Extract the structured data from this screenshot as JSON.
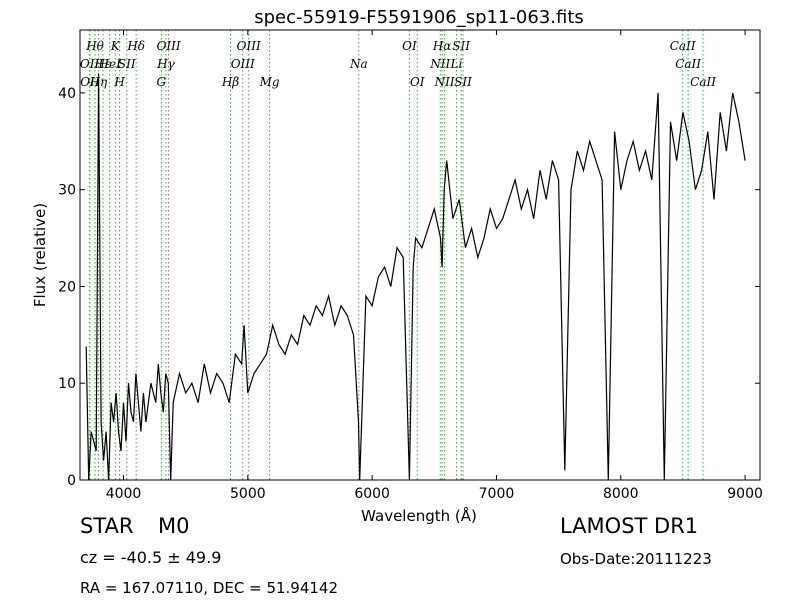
{
  "chart_data": {
    "type": "line",
    "title": "spec-55919-F5591906_sp11-063.fits",
    "xlabel": "Wavelength (Å)",
    "ylabel": "Flux (relative)",
    "xlim": [
      3650,
      9120
    ],
    "ylim": [
      0,
      46.5
    ],
    "x_ticks": [
      4000,
      5000,
      6000,
      7000,
      8000,
      9000
    ],
    "y_ticks": [
      0,
      10,
      20,
      30,
      40
    ],
    "grid": false,
    "line_color": "#000000",
    "marker_color": "#3aa53a",
    "series": [
      {
        "x": [
          3700,
          3720,
          3740,
          3760,
          3780,
          3800,
          3820,
          3840,
          3860,
          3880,
          3900,
          3920,
          3940,
          3960,
          3980,
          4000,
          4020,
          4040,
          4060,
          4080,
          4100,
          4120,
          4140,
          4160,
          4180,
          4200,
          4220,
          4240,
          4260,
          4280,
          4300,
          4320,
          4340,
          4360,
          4380,
          4400,
          4450,
          4500,
          4550,
          4600,
          4650,
          4700,
          4750,
          4800,
          4850,
          4900,
          4950,
          4970,
          5000,
          5050,
          5100,
          5150,
          5200,
          5250,
          5300,
          5350,
          5400,
          5450,
          5500,
          5550,
          5600,
          5650,
          5700,
          5750,
          5800,
          5850,
          5890,
          5900,
          5950,
          6000,
          6050,
          6100,
          6150,
          6200,
          6250,
          6300,
          6330,
          6350,
          6400,
          6450,
          6500,
          6550,
          6563,
          6580,
          6600,
          6650,
          6700,
          6750,
          6800,
          6850,
          6900,
          6950,
          7000,
          7050,
          7100,
          7150,
          7200,
          7250,
          7300,
          7350,
          7400,
          7450,
          7500,
          7550,
          7600,
          7650,
          7700,
          7750,
          7800,
          7850,
          7900,
          7950,
          8000,
          8050,
          8100,
          8150,
          8200,
          8250,
          8300,
          8350,
          8400,
          8450,
          8500,
          8550,
          8600,
          8650,
          8700,
          8750,
          8800,
          8850,
          8900,
          8950,
          9000
        ],
        "y": [
          13.8,
          0,
          5,
          4,
          3,
          42,
          6,
          2,
          5,
          0,
          8,
          6,
          9,
          5,
          3,
          8,
          4,
          10,
          7,
          6,
          11,
          8,
          5,
          9,
          6,
          8,
          10,
          9,
          8,
          12,
          9,
          7,
          11,
          10,
          0,
          8,
          11,
          9,
          10,
          8,
          12,
          9,
          11,
          10,
          8,
          13,
          12,
          16,
          9,
          11,
          12,
          13,
          16,
          14,
          13,
          15,
          14,
          17,
          16,
          18,
          17,
          19,
          16,
          18,
          17,
          15,
          6,
          0,
          19,
          18,
          21,
          22,
          20,
          24,
          23,
          0,
          22,
          25,
          24,
          26,
          28,
          25,
          22,
          30,
          33,
          27,
          29,
          24,
          26,
          23,
          25,
          28,
          26,
          27,
          29,
          31,
          28,
          30,
          27,
          32,
          29,
          33,
          31,
          1,
          30,
          34,
          32,
          35,
          33,
          31,
          0,
          36,
          30,
          33,
          35,
          32,
          34,
          31,
          40,
          0,
          37,
          33,
          38,
          35,
          30,
          32,
          36,
          29,
          38,
          34,
          40,
          37,
          33
        ]
      }
    ],
    "markers": [
      {
        "x": 3727,
        "label": "OII",
        "row": 2
      },
      {
        "x": 3730,
        "label": "OII",
        "row": 3
      },
      {
        "x": 3771,
        "label": "Hθ",
        "row": 1
      },
      {
        "x": 3798,
        "label": "Hη",
        "row": 3
      },
      {
        "x": 3835,
        "label": "Hε",
        "row": 2
      },
      {
        "x": 3889,
        "label": "HeI",
        "row": 2
      },
      {
        "x": 3934,
        "label": "K",
        "row": 1
      },
      {
        "x": 3969,
        "label": "H",
        "row": 3
      },
      {
        "x": 4026,
        "label": "SII",
        "row": 2
      },
      {
        "x": 4102,
        "label": "Hδ",
        "row": 1
      },
      {
        "x": 4304,
        "label": "G",
        "row": 3
      },
      {
        "x": 4341,
        "label": "Hγ",
        "row": 2
      },
      {
        "x": 4363,
        "label": "OIII",
        "row": 1
      },
      {
        "x": 4861,
        "label": "Hβ",
        "row": 3
      },
      {
        "x": 4959,
        "label": "OIII",
        "row": 2
      },
      {
        "x": 5007,
        "label": "OIII",
        "row": 1
      },
      {
        "x": 5175,
        "label": "Mg",
        "row": 3
      },
      {
        "x": 5893,
        "label": "Na",
        "row": 2
      },
      {
        "x": 6300,
        "label": "OI",
        "row": 1
      },
      {
        "x": 6363,
        "label": "OI",
        "row": 3
      },
      {
        "x": 6548,
        "label": "NII",
        "row": 2
      },
      {
        "x": 6563,
        "label": "Hα",
        "row": 1
      },
      {
        "x": 6583,
        "label": "NII",
        "row": 3
      },
      {
        "x": 6678,
        "label": "Li",
        "row": 2
      },
      {
        "x": 6716,
        "label": "SII",
        "row": 1
      },
      {
        "x": 6731,
        "label": "SII",
        "row": 3
      },
      {
        "x": 8498,
        "label": "CaII",
        "row": 1
      },
      {
        "x": 8542,
        "label": "CaII",
        "row": 2
      },
      {
        "x": 8662,
        "label": "CaII",
        "row": 3
      }
    ]
  },
  "info": {
    "class_label": "STAR",
    "subclass": "M0",
    "cz": "cz = -40.5 ± 49.9",
    "coords": "RA = 167.07110, DEC = 51.94142",
    "survey": "LAMOST DR1",
    "obs_date": "Obs-Date:20111223"
  }
}
